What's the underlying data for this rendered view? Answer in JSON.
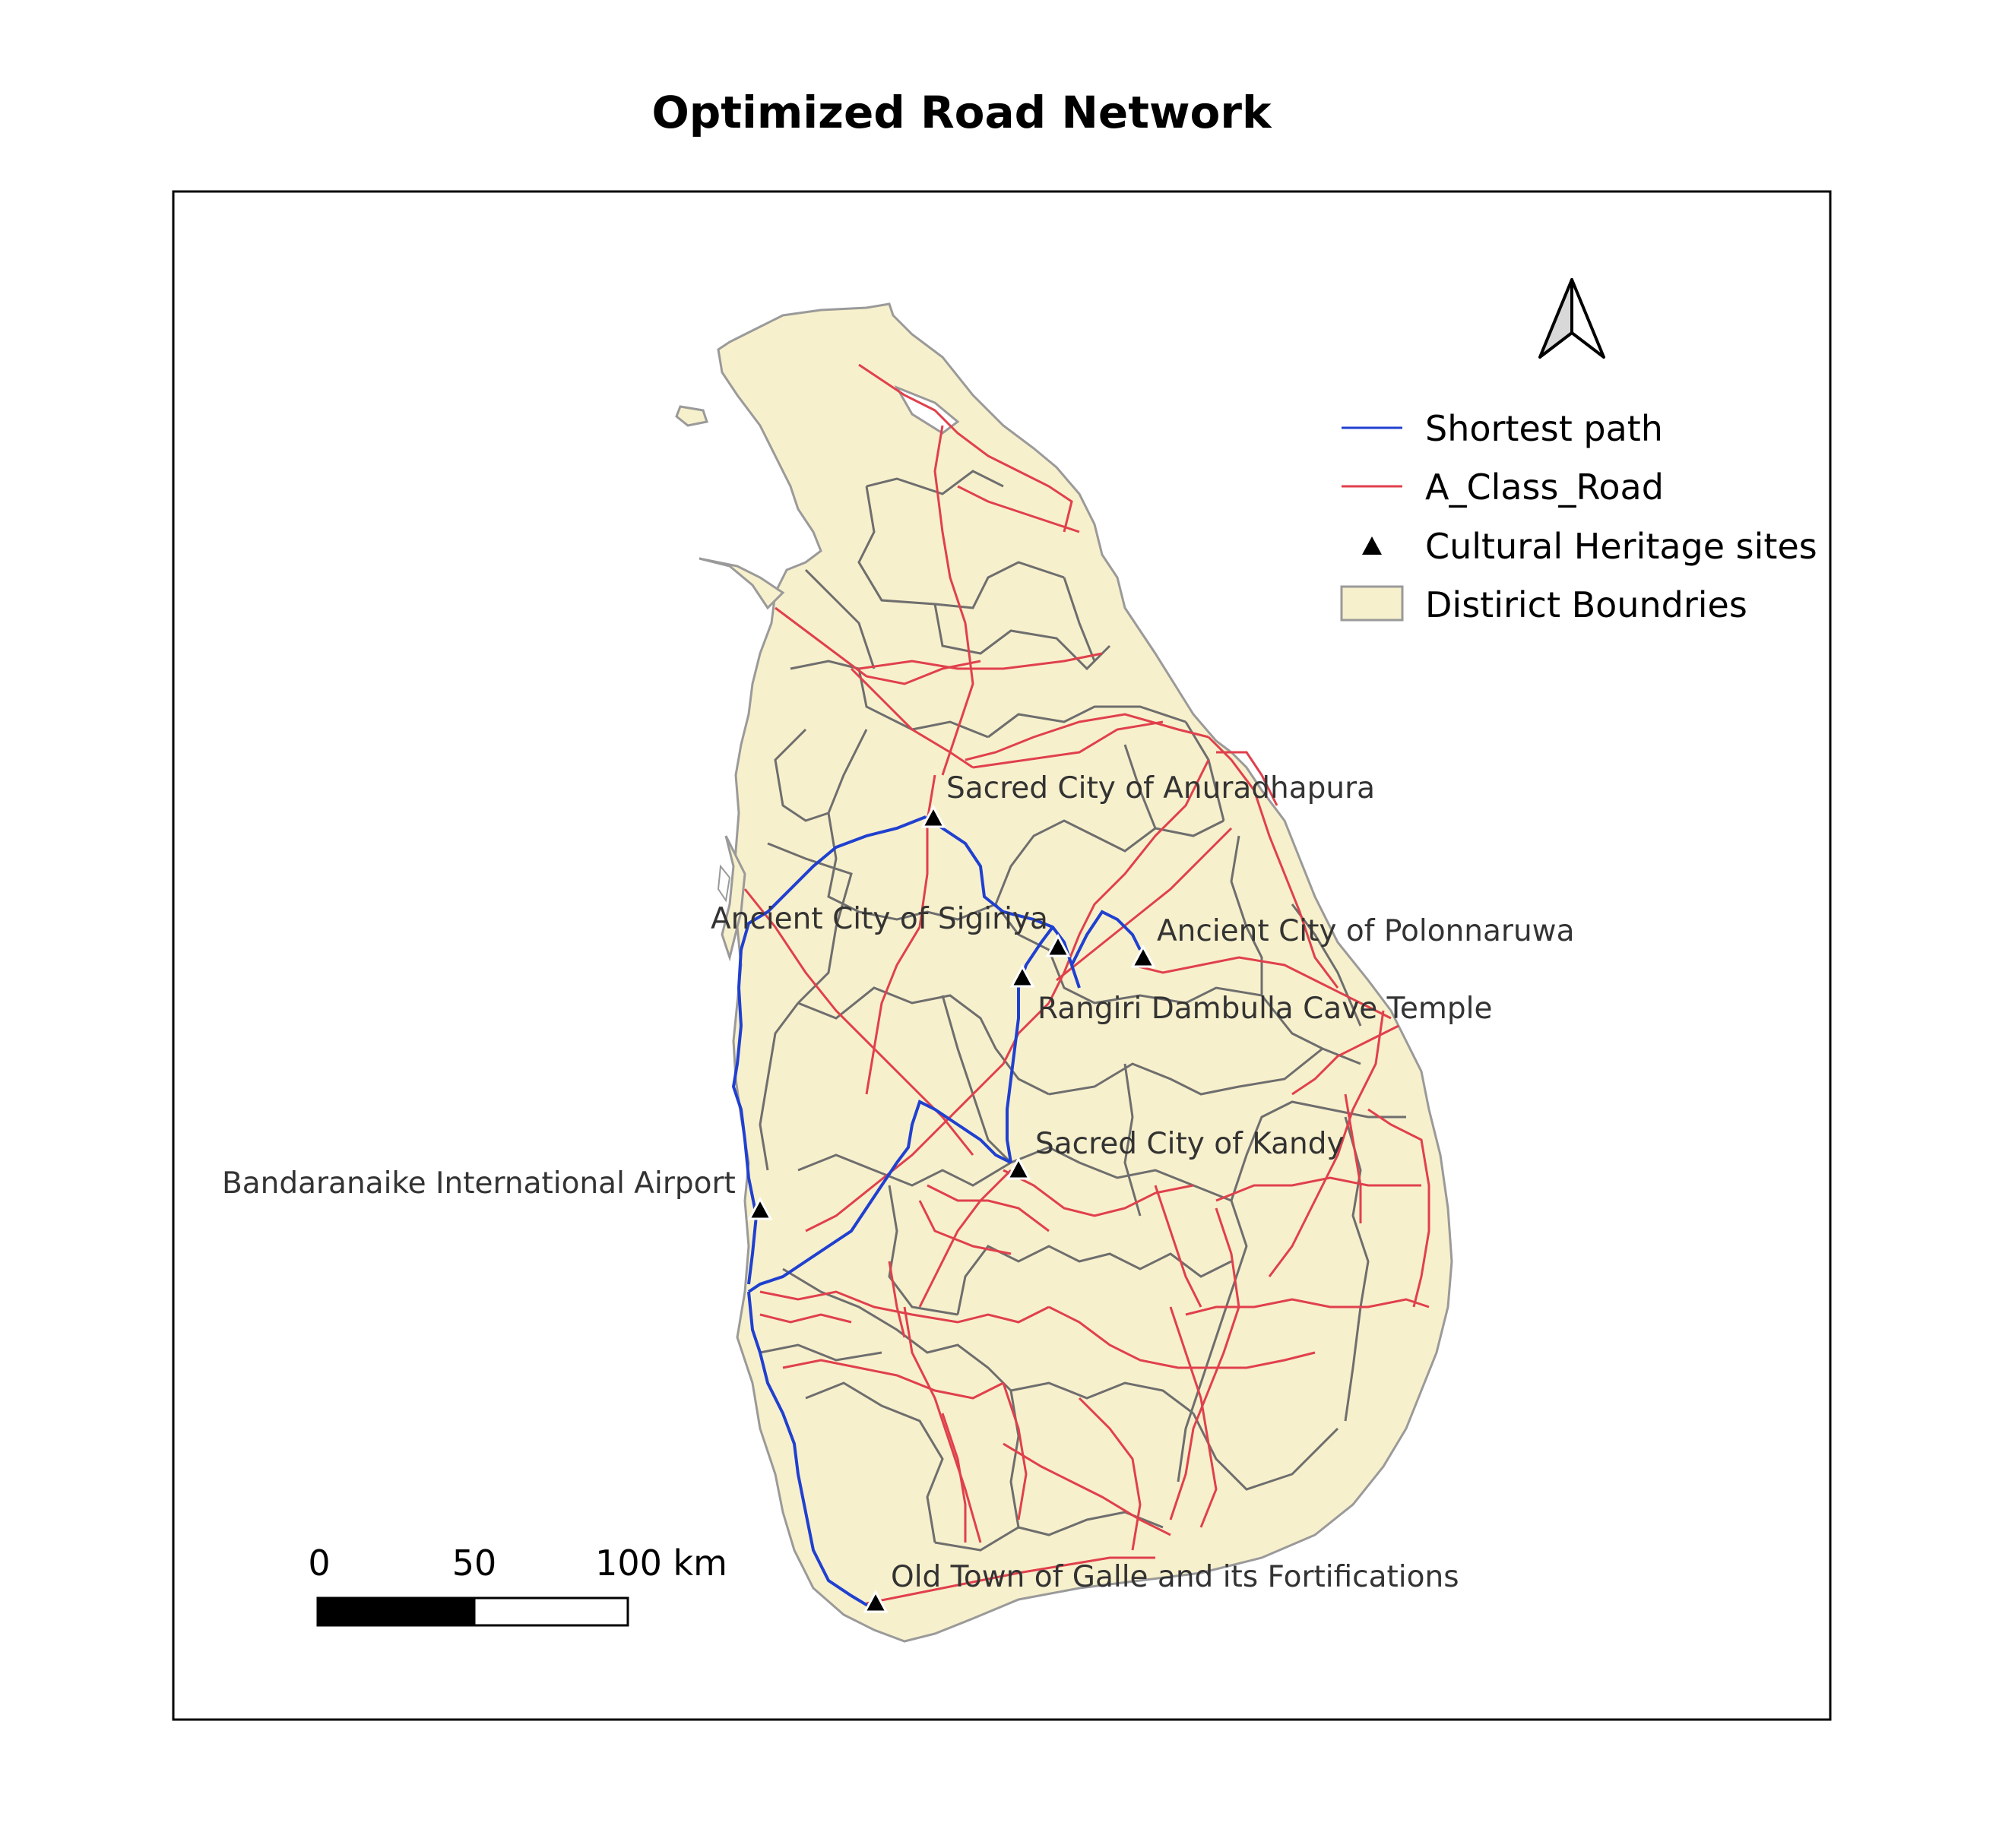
{
  "map": {
    "title": "Optimized Road Network",
    "colors": {
      "land_fill": "#f7f0cc",
      "coast_stroke": "#9a9a9a",
      "district_stroke": "#6e6e6e",
      "road": "#e0404c",
      "shortest_path": "#2040d0",
      "site_marker": "#000000"
    }
  },
  "legend": {
    "items": [
      {
        "label": "Shortest path",
        "symbol": "line-blue"
      },
      {
        "label": "A_Class_Road",
        "symbol": "line-red"
      },
      {
        "label": "Cultural Heritage sites",
        "symbol": "triangle"
      },
      {
        "label": "Distirict Boundries",
        "symbol": "polygon"
      }
    ]
  },
  "scale_bar": {
    "labels": [
      "0",
      "50",
      "100 km"
    ]
  },
  "north_arrow": {
    "icon": "north-arrow-icon"
  },
  "sites": [
    {
      "name": "Sacred City of Anuradhapura"
    },
    {
      "name": "Ancient City of Sigiriya"
    },
    {
      "name": "Ancient City of Polonnaruwa"
    },
    {
      "name": "Rangiri Dambulla Cave Temple"
    },
    {
      "name": "Sacred City of Kandy"
    },
    {
      "name": "Bandaranaike International Airport"
    },
    {
      "name": "Old Town of Galle and its Fortifications"
    }
  ]
}
